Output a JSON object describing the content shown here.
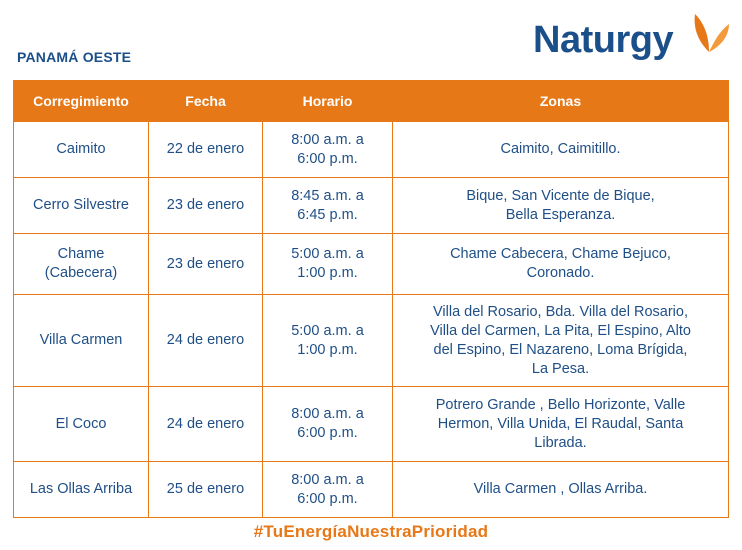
{
  "region_title": "PANAMÁ OESTE",
  "brand": {
    "name": "Naturgy",
    "primary_color": "#1b4f8a",
    "accent_color": "#e77817",
    "logo_icon": "butterfly-icon"
  },
  "table": {
    "headers": [
      "Corregimiento",
      "Fecha",
      "Horario",
      "Zonas"
    ],
    "rows": [
      {
        "corregimiento": "Caimito",
        "fecha": "22 de enero",
        "horario": "8:00 a.m. a\n6:00 p.m.",
        "zonas": "Caimito, Caimitillo."
      },
      {
        "corregimiento": "Cerro Silvestre",
        "fecha": "23 de enero",
        "horario": "8:45 a.m. a\n6:45 p.m.",
        "zonas": "Bique, San Vicente de Bique,\nBella Esperanza."
      },
      {
        "corregimiento": "Chame\n(Cabecera)",
        "fecha": "23 de enero",
        "horario": "5:00 a.m. a\n1:00 p.m.",
        "zonas": "Chame Cabecera, Chame Bejuco,\nCoronado."
      },
      {
        "corregimiento": "Villa Carmen",
        "fecha": "24 de enero",
        "horario": "5:00 a.m. a\n1:00 p.m.",
        "zonas": "Villa del Rosario, Bda. Villa del Rosario,\nVilla del Carmen, La Pita, El Espino, Alto\ndel Espino, El Nazareno, Loma Brígida,\nLa Pesa."
      },
      {
        "corregimiento": "El Coco",
        "fecha": "24 de enero",
        "horario": "8:00 a.m. a\n6:00 p.m.",
        "zonas": "Potrero Grande , Bello Horizonte, Valle\nHermon, Villa Unida, El Raudal, Santa\nLibrada."
      },
      {
        "corregimiento": "Las Ollas Arriba",
        "fecha": "25 de enero",
        "horario": "8:00 a.m. a\n6:00 p.m.",
        "zonas": "Villa Carmen , Ollas Arriba."
      }
    ]
  },
  "footer_hashtag": "#TuEnergíaNuestraPrioridad"
}
